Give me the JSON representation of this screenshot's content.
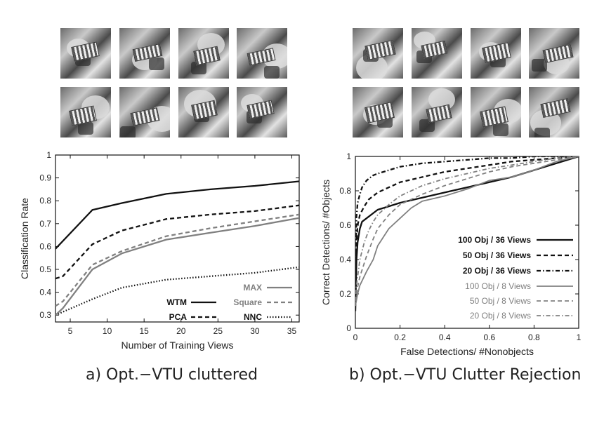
{
  "chart_data": [
    {
      "type": "line",
      "caption": "a) Opt.−VTU cluttered",
      "xlabel": "Number of Training Views",
      "ylabel": "Classification Rate",
      "xlim": [
        3,
        36
      ],
      "ylim": [
        0.27,
        1.0
      ],
      "xticks": [
        "5",
        "10",
        "15",
        "20",
        "25",
        "30",
        "35"
      ],
      "yticks": [
        "0.3",
        "0.4",
        "0.5",
        "0.6",
        "0.7",
        "0.8",
        "0.9",
        "1"
      ],
      "grid": false,
      "legend_position": "bottom-right",
      "series": [
        {
          "name": "WTM",
          "color": "#111111",
          "dash": "solid",
          "bold": true,
          "x": [
            3,
            8,
            12,
            18,
            24,
            30,
            36
          ],
          "y": [
            0.59,
            0.76,
            0.79,
            0.83,
            0.85,
            0.865,
            0.885
          ]
        },
        {
          "name": "PCA",
          "color": "#111111",
          "dash": "dashed",
          "bold": true,
          "x": [
            3,
            4,
            8,
            12,
            18,
            24,
            30,
            36
          ],
          "y": [
            0.46,
            0.47,
            0.61,
            0.67,
            0.72,
            0.74,
            0.755,
            0.78
          ]
        },
        {
          "name": "NNC",
          "color": "#111111",
          "dash": "dotted",
          "bold": true,
          "x": [
            3,
            8,
            12,
            18,
            24,
            30,
            36
          ],
          "y": [
            0.3,
            0.37,
            0.42,
            0.455,
            0.47,
            0.485,
            0.51
          ]
        },
        {
          "name": "MAX",
          "color": "#808080",
          "dash": "solid",
          "bold": true,
          "x": [
            3,
            4,
            8,
            12,
            18,
            24,
            30,
            36
          ],
          "y": [
            0.3,
            0.33,
            0.5,
            0.57,
            0.63,
            0.66,
            0.69,
            0.725
          ]
        },
        {
          "name": "Square",
          "color": "#808080",
          "dash": "dashed",
          "bold": true,
          "x": [
            3,
            4,
            8,
            12,
            18,
            24,
            30,
            36
          ],
          "y": [
            0.34,
            0.36,
            0.52,
            0.58,
            0.645,
            0.68,
            0.71,
            0.74
          ]
        }
      ]
    },
    {
      "type": "line",
      "caption": "b) Opt.−VTU Clutter Rejection",
      "xlabel": "False Detections/ #Nonobjects",
      "ylabel": "Correct Detections/ #Objects",
      "xlim": [
        0,
        1
      ],
      "ylim": [
        0,
        1
      ],
      "xticks": [
        "0",
        "0.2",
        "0.4",
        "0.6",
        "0.8",
        "1"
      ],
      "yticks": [
        "0",
        "0.2",
        "0.4",
        "0.6",
        "0.8",
        "1"
      ],
      "grid": false,
      "legend_position": "bottom-right",
      "series": [
        {
          "name": "100 Obj / 36 Views",
          "color": "#111111",
          "dash": "solid",
          "bold": true,
          "x": [
            0,
            0.005,
            0.01,
            0.02,
            0.03,
            0.05,
            0.08,
            0.1,
            0.15,
            0.2,
            0.3,
            0.4,
            0.5,
            0.6,
            0.7,
            0.8,
            0.9,
            1.0
          ],
          "y": [
            0.1,
            0.4,
            0.5,
            0.58,
            0.62,
            0.64,
            0.67,
            0.69,
            0.71,
            0.73,
            0.76,
            0.79,
            0.82,
            0.85,
            0.88,
            0.92,
            0.96,
            1.0
          ]
        },
        {
          "name": "50 Obj / 36 Views",
          "color": "#111111",
          "dash": "dashed",
          "bold": true,
          "x": [
            0,
            0.005,
            0.01,
            0.02,
            0.04,
            0.06,
            0.1,
            0.15,
            0.2,
            0.3,
            0.4,
            0.5,
            0.6,
            0.7,
            0.8,
            0.9,
            1.0
          ],
          "y": [
            0.15,
            0.5,
            0.6,
            0.66,
            0.71,
            0.75,
            0.79,
            0.82,
            0.85,
            0.88,
            0.91,
            0.93,
            0.95,
            0.97,
            0.98,
            0.99,
            1.0
          ]
        },
        {
          "name": "20 Obj / 36 Views",
          "color": "#111111",
          "dash": "dashdot",
          "bold": true,
          "x": [
            0,
            0.005,
            0.01,
            0.02,
            0.03,
            0.05,
            0.08,
            0.1,
            0.15,
            0.2,
            0.3,
            0.4,
            0.5,
            0.6,
            0.7,
            0.8,
            0.9,
            1.0
          ],
          "y": [
            0.2,
            0.65,
            0.73,
            0.78,
            0.82,
            0.86,
            0.89,
            0.9,
            0.92,
            0.94,
            0.96,
            0.97,
            0.98,
            0.99,
            0.99,
            1.0,
            1.0,
            1.0
          ]
        },
        {
          "name": "100 Obj / 8 Views",
          "color": "#808080",
          "dash": "solid",
          "bold": false,
          "x": [
            0,
            0.01,
            0.02,
            0.05,
            0.08,
            0.1,
            0.15,
            0.2,
            0.25,
            0.3,
            0.4,
            0.5,
            0.6,
            0.7,
            0.8,
            0.9,
            1.0
          ],
          "y": [
            0.13,
            0.2,
            0.25,
            0.33,
            0.4,
            0.48,
            0.58,
            0.64,
            0.7,
            0.74,
            0.77,
            0.81,
            0.86,
            0.88,
            0.92,
            0.97,
            1.0
          ]
        },
        {
          "name": "50 Obj / 8 Views",
          "color": "#808080",
          "dash": "dashed",
          "bold": false,
          "x": [
            0,
            0.01,
            0.02,
            0.05,
            0.08,
            0.1,
            0.15,
            0.2,
            0.3,
            0.4,
            0.5,
            0.6,
            0.7,
            0.8,
            0.9,
            1.0
          ],
          "y": [
            0.16,
            0.24,
            0.3,
            0.42,
            0.52,
            0.58,
            0.66,
            0.72,
            0.78,
            0.83,
            0.87,
            0.91,
            0.94,
            0.96,
            0.98,
            1.0
          ]
        },
        {
          "name": "20 Obj / 8 Views",
          "color": "#808080",
          "dash": "dashdot",
          "bold": false,
          "x": [
            0,
            0.01,
            0.02,
            0.04,
            0.06,
            0.08,
            0.1,
            0.15,
            0.2,
            0.3,
            0.4,
            0.5,
            0.6,
            0.7,
            0.8,
            0.9,
            1.0
          ],
          "y": [
            0.2,
            0.3,
            0.4,
            0.5,
            0.57,
            0.62,
            0.66,
            0.72,
            0.77,
            0.83,
            0.87,
            0.9,
            0.93,
            0.95,
            0.97,
            0.99,
            1.0
          ]
        }
      ]
    }
  ]
}
